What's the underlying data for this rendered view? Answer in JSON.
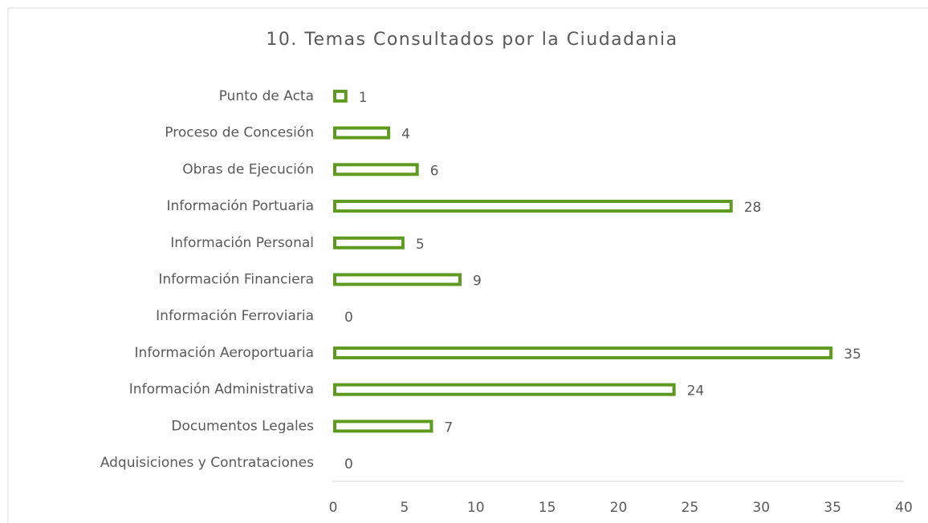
{
  "chart_data": {
    "type": "barh",
    "title": "10. Temas Consultados por la Ciudadania",
    "categories": [
      "Punto de Acta",
      "Proceso de Concesión",
      "Obras de Ejecución",
      "Información Portuaria",
      "Información Personal",
      "Información Financiera",
      "Información Ferroviaria",
      "Información Aeroportuaria",
      "Información Administrativa",
      "Documentos Legales",
      "Adquisiciones y Contrataciones"
    ],
    "values": [
      1,
      4,
      6,
      28,
      5,
      9,
      0,
      35,
      24,
      7,
      0
    ],
    "color": "#5e9a1f",
    "xlim": [
      0,
      40
    ],
    "xticks": [
      0,
      5,
      10,
      15,
      20,
      25,
      30,
      35,
      40
    ]
  }
}
